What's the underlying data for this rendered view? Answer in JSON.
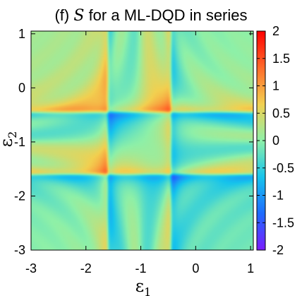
{
  "chart_data": {
    "type": "heatmap",
    "title_prefix": "(f)",
    "title_symbol": "S",
    "title_suffix": "for a ML-DQD in series",
    "xlabel": "ε",
    "xlabel_sub": "1",
    "ylabel": "ε",
    "ylabel_sub": "2",
    "xlim": [
      -3.0,
      1.05
    ],
    "ylim": [
      -3.0,
      1.05
    ],
    "x_ticks": [
      -3,
      -2,
      -1,
      0,
      1
    ],
    "x_tick_labels": [
      "-3",
      "-2",
      "-1",
      "0",
      "1"
    ],
    "y_ticks": [
      -3,
      -2,
      -1,
      0,
      1
    ],
    "y_tick_labels": [
      "-3",
      "-2",
      "-1",
      "0",
      "1"
    ],
    "colorbar": {
      "min": -2,
      "max": 2,
      "ticks": [
        -2,
        -1.5,
        -1,
        -0.5,
        0,
        0.5,
        1,
        1.5,
        2
      ],
      "tick_labels": [
        "-2",
        "-1.5",
        "-1",
        "-0.5",
        "0",
        "0.5",
        "1",
        "1.5",
        "2"
      ]
    },
    "colormap": {
      "name": "rainbow",
      "stops": [
        "#7a1cff",
        "#1e6bff",
        "#16c4ec",
        "#8ef0a8",
        "#f2d050",
        "#ff6a2a",
        "#ff0000"
      ]
    },
    "resonance_lines": {
      "eps1": [
        -1.6,
        -0.45
      ],
      "eps2": [
        -0.45,
        -1.6
      ]
    },
    "z_range": [
      -2,
      2
    ]
  }
}
